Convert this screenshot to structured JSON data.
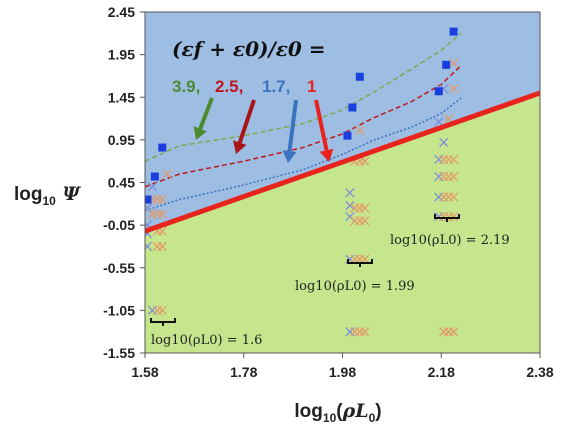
{
  "chart_data": {
    "type": "scatter",
    "xlabel": "log10(ρL0)",
    "ylabel": "log10 Ψ",
    "xlim": [
      1.58,
      2.38
    ],
    "ylim": [
      -1.55,
      2.45
    ],
    "x_ticks": [
      "1.58",
      "1.78",
      "1.98",
      "2.18",
      "2.38"
    ],
    "y_ticks": [
      "2.45",
      "1.95",
      "1.45",
      "0.95",
      "0.45",
      "-0.05",
      "-0.55",
      "-1.05",
      "-1.55"
    ],
    "grid": false,
    "legend_header": "(εf + ε0)/ε0 =",
    "legend_values": [
      {
        "label": "3.9,",
        "color": "#4d8a2e"
      },
      {
        "label": "2.5,",
        "color": "#c0161b"
      },
      {
        "label": "1.7,",
        "color": "#3a74c0"
      },
      {
        "label": "1",
        "color": "#e8231e"
      }
    ],
    "region_colors": {
      "upper": "#9dbde3",
      "lower": "#c6e68e"
    },
    "boundary_line": {
      "color": "#e8231e",
      "x": [
        1.58,
        2.38
      ],
      "y": [
        -0.12,
        1.5
      ]
    },
    "curves": [
      {
        "ratio": "3.9",
        "color": "#7fa84a",
        "dash": "dashed",
        "x": [
          1.58,
          1.65,
          1.78,
          1.9,
          1.98,
          2.04,
          2.12,
          2.18,
          2.22
        ],
        "y": [
          0.7,
          0.88,
          1.0,
          1.14,
          1.3,
          1.5,
          1.78,
          2.0,
          2.2
        ]
      },
      {
        "ratio": "2.5",
        "color": "#c0161b",
        "dash": "dashed",
        "x": [
          1.58,
          1.65,
          1.78,
          1.9,
          1.98,
          2.04,
          2.12,
          2.18,
          2.22
        ],
        "y": [
          0.4,
          0.55,
          0.7,
          0.86,
          1.02,
          1.2,
          1.4,
          1.6,
          1.82
        ]
      },
      {
        "ratio": "1.7",
        "color": "#3a74c0",
        "dash": "dotted",
        "x": [
          1.58,
          1.65,
          1.78,
          1.9,
          1.98,
          2.04,
          2.12,
          2.18,
          2.22
        ],
        "y": [
          0.12,
          0.25,
          0.42,
          0.6,
          0.78,
          0.94,
          1.1,
          1.26,
          1.44
        ]
      }
    ],
    "annotations": [
      {
        "text": "log10(ρL0) = 1.6",
        "x": 1.6
      },
      {
        "text": "log10(ρL0) = 1.99",
        "x": 1.99
      },
      {
        "text": "log10(ρL0) = 2.19",
        "x": 2.19
      }
    ],
    "series": [
      {
        "name": "",
        "marker": "square",
        "color": "#1a3fe0",
        "x": [
          1.585,
          1.6,
          1.615,
          1.99,
          2.0,
          2.015,
          2.175,
          2.19,
          2.205
        ],
        "y": [
          0.25,
          0.52,
          0.86,
          1.0,
          1.33,
          1.69,
          1.52,
          1.83,
          2.22
        ]
      },
      {
        "name": "",
        "marker": "cross",
        "color": "#7d8fd6",
        "x": [
          1.585,
          1.585,
          1.585,
          1.585,
          1.585,
          1.595,
          1.595,
          1.995,
          1.995,
          1.995,
          1.995,
          1.995,
          2.175,
          2.175,
          2.175,
          2.175,
          2.175,
          2.185,
          2.185
        ],
        "y": [
          0.25,
          0.15,
          -0.05,
          -0.15,
          -0.3,
          -1.05,
          0.4,
          0.33,
          0.18,
          0.05,
          -0.45,
          -1.3,
          1.16,
          0.72,
          0.52,
          0.28,
          0.05,
          0.92,
          1.55
        ]
      },
      {
        "name": "",
        "marker": "cross",
        "color": "#e39a68",
        "x": [
          1.595,
          1.605,
          1.615,
          1.595,
          1.605,
          1.615,
          1.605,
          1.615,
          1.605,
          1.615,
          1.605,
          1.615,
          2.005,
          2.015,
          2.025,
          2.005,
          2.015,
          2.025,
          2.005,
          2.015,
          2.025,
          2.005,
          2.015,
          2.025,
          2.005,
          2.015,
          2.025,
          2.015,
          2.185,
          2.195,
          2.205,
          2.185,
          2.195,
          2.205,
          2.185,
          2.195,
          2.205,
          2.185,
          2.195,
          2.205,
          2.185,
          2.195,
          2.205,
          2.195,
          2.205,
          2.205,
          1.625
        ],
        "y": [
          0.25,
          0.25,
          0.25,
          0.08,
          0.08,
          0.08,
          -0.12,
          -0.12,
          -0.3,
          -0.3,
          -1.05,
          -1.05,
          0.7,
          0.7,
          0.7,
          0.15,
          0.15,
          0.15,
          0.0,
          0.0,
          0.0,
          -0.45,
          -0.45,
          -0.45,
          -1.3,
          -1.3,
          -1.3,
          1.06,
          0.72,
          0.72,
          0.72,
          0.52,
          0.52,
          0.52,
          0.28,
          0.28,
          0.28,
          0.05,
          0.05,
          0.05,
          -1.3,
          -1.3,
          -1.3,
          1.2,
          1.55,
          1.85,
          0.55
        ]
      }
    ]
  }
}
